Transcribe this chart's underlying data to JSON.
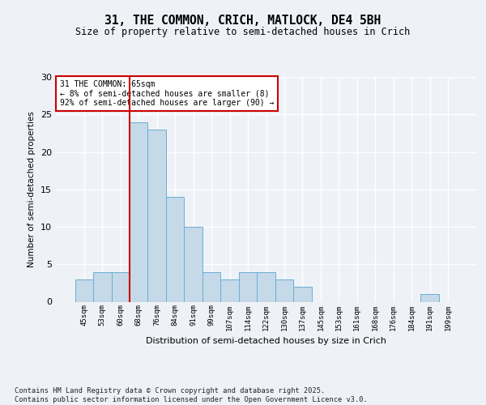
{
  "title1": "31, THE COMMON, CRICH, MATLOCK, DE4 5BH",
  "title2": "Size of property relative to semi-detached houses in Crich",
  "xlabel": "Distribution of semi-detached houses by size in Crich",
  "ylabel": "Number of semi-detached properties",
  "bins": [
    "45sqm",
    "53sqm",
    "60sqm",
    "68sqm",
    "76sqm",
    "84sqm",
    "91sqm",
    "99sqm",
    "107sqm",
    "114sqm",
    "122sqm",
    "130sqm",
    "137sqm",
    "145sqm",
    "153sqm",
    "161sqm",
    "168sqm",
    "176sqm",
    "184sqm",
    "191sqm",
    "199sqm"
  ],
  "values": [
    3,
    4,
    4,
    24,
    23,
    14,
    10,
    4,
    3,
    4,
    4,
    3,
    2,
    0,
    0,
    0,
    0,
    0,
    0,
    1,
    0
  ],
  "bar_color": "#c5d9e8",
  "bar_edge_color": "#6aaed6",
  "vline_color": "#cc0000",
  "annotation_text": "31 THE COMMON: 65sqm\n← 8% of semi-detached houses are smaller (8)\n92% of semi-detached houses are larger (90) →",
  "annotation_box_color": "#ffffff",
  "annotation_box_edge": "#cc0000",
  "ylim": [
    0,
    30
  ],
  "yticks": [
    0,
    5,
    10,
    15,
    20,
    25,
    30
  ],
  "footer": "Contains HM Land Registry data © Crown copyright and database right 2025.\nContains public sector information licensed under the Open Government Licence v3.0.",
  "bg_color": "#eef2f7"
}
